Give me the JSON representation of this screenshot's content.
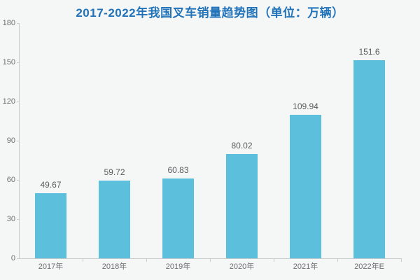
{
  "title": "2017-2022年我国叉车销量趋势图（单位：万辆）",
  "colors": {
    "background": "#f5f6f6",
    "title": "#2173b9",
    "bar": "#5cc0dd",
    "axis_line": "#c6cbce",
    "tick_label": "#6b6e70",
    "data_label": "#595c5e"
  },
  "chart_data": {
    "type": "bar",
    "title": "2017-2022年我国叉车销量趋势图（单位：万辆）",
    "categories": [
      "2017年",
      "2018年",
      "2019年",
      "2020年",
      "2021年",
      "2022年E"
    ],
    "values": [
      49.67,
      59.72,
      60.83,
      80.02,
      109.94,
      151.6
    ],
    "data_labels": [
      "49.67",
      "59.72",
      "60.83",
      "80.02",
      "109.94",
      "151.6"
    ],
    "xlabel": "",
    "ylabel": "",
    "unit": "万辆",
    "ylim": [
      0,
      180
    ],
    "yticks": [
      0,
      30,
      60,
      90,
      120,
      150,
      180
    ],
    "grid": false,
    "legend": "none"
  }
}
